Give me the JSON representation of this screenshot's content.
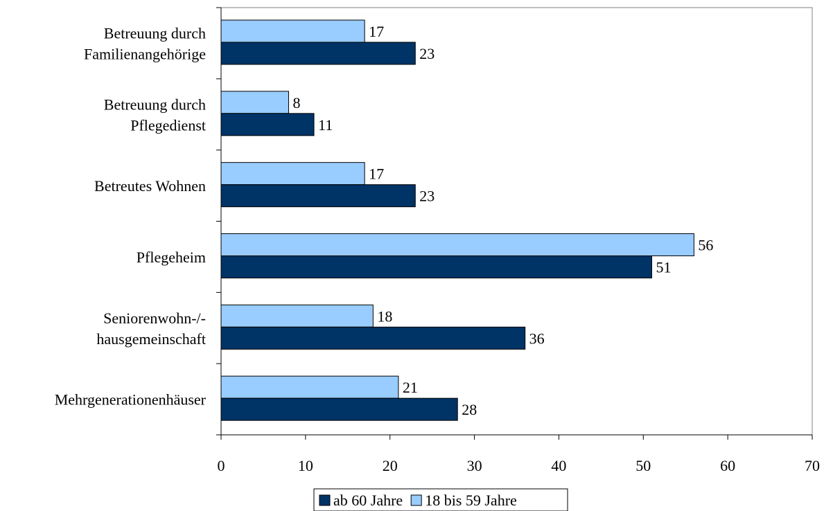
{
  "chart_data": {
    "type": "bar",
    "orientation": "horizontal",
    "title": "",
    "xlabel": "",
    "ylabel": "",
    "xlim": [
      0,
      70
    ],
    "x_ticks": [
      0,
      10,
      20,
      30,
      40,
      50,
      60,
      70
    ],
    "grid": false,
    "legend_position": "bottom",
    "categories": [
      [
        "Betreuung durch",
        "Familienangehörige"
      ],
      [
        "Betreuung durch",
        "Pflegedienst"
      ],
      [
        "Betreutes Wohnen"
      ],
      [
        "Pflegeheim"
      ],
      [
        "Seniorenwohn-/-",
        "hausgemeinschaft"
      ],
      [
        "Mehrgenerationenhäuser"
      ]
    ],
    "series": [
      {
        "name": "18 bis 59 Jahre",
        "color": "#99ccff",
        "values": [
          17,
          8,
          17,
          56,
          18,
          21
        ]
      },
      {
        "name": "ab 60 Jahre",
        "color": "#003366",
        "values": [
          23,
          11,
          23,
          51,
          36,
          28
        ]
      }
    ],
    "legend_order": [
      "ab 60 Jahre",
      "18 bis 59 Jahre"
    ]
  }
}
